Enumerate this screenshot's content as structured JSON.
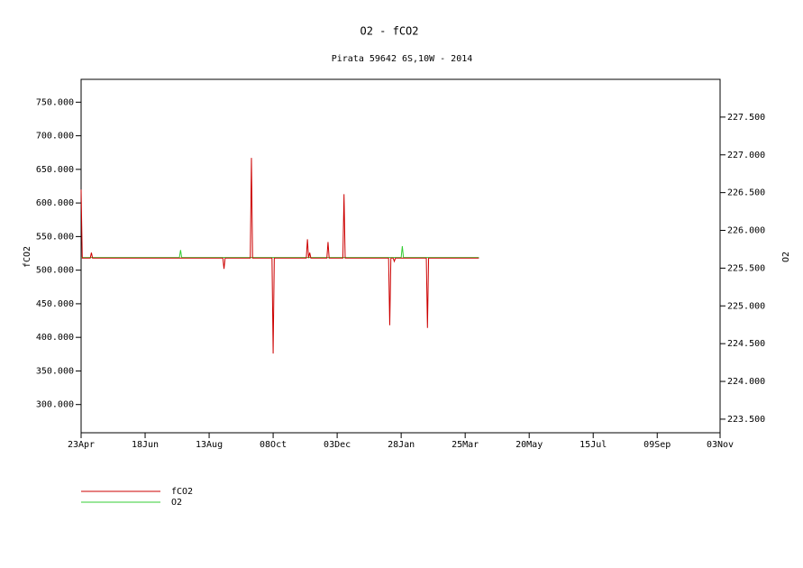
{
  "chart_data": {
    "type": "line",
    "title": "O2 - fCO2",
    "subtitle": "Pirata 59642 6S,10W - 2014",
    "y_label": "fCO2",
    "y2_label": "O2",
    "xlim": [
      0,
      559
    ],
    "xticks": [
      {
        "value": 0,
        "label": "23Apr"
      },
      {
        "value": 56,
        "label": "18Jun"
      },
      {
        "value": 112,
        "label": "13Aug"
      },
      {
        "value": 168,
        "label": "08Oct"
      },
      {
        "value": 224,
        "label": "03Dec"
      },
      {
        "value": 280,
        "label": "28Jan"
      },
      {
        "value": 336,
        "label": "25Mar"
      },
      {
        "value": 392,
        "label": "20May"
      },
      {
        "value": 448,
        "label": "15Jul"
      },
      {
        "value": 504,
        "label": "09Sep"
      },
      {
        "value": 559,
        "label": "03Nov"
      }
    ],
    "ylim": [
      258,
      784
    ],
    "yticks": [
      {
        "value": 300,
        "label": "300.000"
      },
      {
        "value": 350,
        "label": "350.000"
      },
      {
        "value": 400,
        "label": "400.000"
      },
      {
        "value": 450,
        "label": "450.000"
      },
      {
        "value": 500,
        "label": "500.000"
      },
      {
        "value": 550,
        "label": "550.000"
      },
      {
        "value": 600,
        "label": "600.000"
      },
      {
        "value": 650,
        "label": "650.000"
      },
      {
        "value": 700,
        "label": "700.000"
      },
      {
        "value": 750,
        "label": "750.000"
      }
    ],
    "y2lim": [
      223.32,
      228.0
    ],
    "y2ticks": [
      {
        "value": 223.5,
        "label": "223.500"
      },
      {
        "value": 224,
        "label": "224.000"
      },
      {
        "value": 224.5,
        "label": "224.500"
      },
      {
        "value": 225,
        "label": "225.000"
      },
      {
        "value": 225.5,
        "label": "225.500"
      },
      {
        "value": 226,
        "label": "226.000"
      },
      {
        "value": 226.5,
        "label": "226.500"
      },
      {
        "value": 227,
        "label": "227.000"
      },
      {
        "value": 227.5,
        "label": "227.500"
      }
    ],
    "series": [
      {
        "name": "fCO2",
        "color": "#cc0000",
        "x": [
          0,
          1,
          8,
          9,
          10,
          124,
          125,
          126,
          148,
          149,
          150,
          167,
          168,
          169,
          197,
          198,
          199,
          200,
          201,
          215,
          216,
          217,
          229,
          230,
          231,
          269,
          270,
          271,
          273,
          274,
          275,
          302,
          303,
          304,
          348
        ],
        "values": [
          620,
          518,
          518,
          526,
          518,
          518,
          502,
          518,
          518,
          667,
          518,
          518,
          376,
          518,
          518,
          546,
          518,
          526,
          518,
          518,
          542,
          518,
          518,
          613,
          518,
          518,
          418,
          518,
          518,
          513,
          518,
          518,
          414,
          518,
          518
        ]
      },
      {
        "name": "O2",
        "color": "#33cc33",
        "axis": "y2",
        "x": [
          0,
          86,
          87,
          88,
          280,
          281,
          282,
          348
        ],
        "values": [
          225.64,
          225.64,
          225.74,
          225.64,
          225.64,
          225.79,
          225.64,
          225.64
        ]
      }
    ]
  }
}
